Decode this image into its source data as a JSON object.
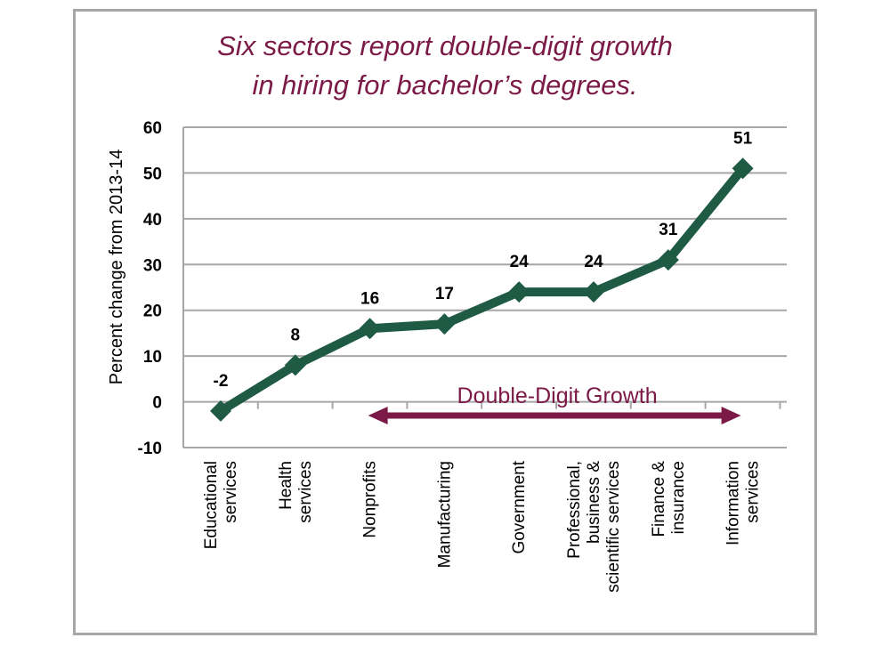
{
  "chart_data": {
    "type": "line",
    "title_lines": [
      "Six sectors report double-digit growth",
      "in hiring for bachelor’s degrees."
    ],
    "xlabel": "",
    "ylabel": "Percent change from 2013-14",
    "ylim": [
      -10,
      60
    ],
    "yticks": [
      -10,
      0,
      10,
      20,
      30,
      40,
      50,
      60
    ],
    "grid": true,
    "categories": [
      [
        "Educational",
        "services"
      ],
      [
        "Health",
        "services"
      ],
      [
        "Nonprofits"
      ],
      [
        "Manufacturing"
      ],
      [
        "Government"
      ],
      [
        "Professional,",
        "business &",
        "scientific services"
      ],
      [
        "Finance &",
        "insurance"
      ],
      [
        "Information",
        "services"
      ]
    ],
    "values": [
      -2,
      8,
      16,
      17,
      24,
      24,
      31,
      51
    ],
    "data_labels": [
      "-2",
      "8",
      "16",
      "17",
      "24",
      "24",
      "31",
      "51"
    ],
    "annotation": {
      "text": "Double-Digit Growth",
      "from_category": 2,
      "to_category": 7,
      "y": -3
    },
    "colors": {
      "line": "#1f5a45",
      "marker": "#1f5a45",
      "annotation": "#7b1a47",
      "grid": "#a6a6a6"
    }
  }
}
